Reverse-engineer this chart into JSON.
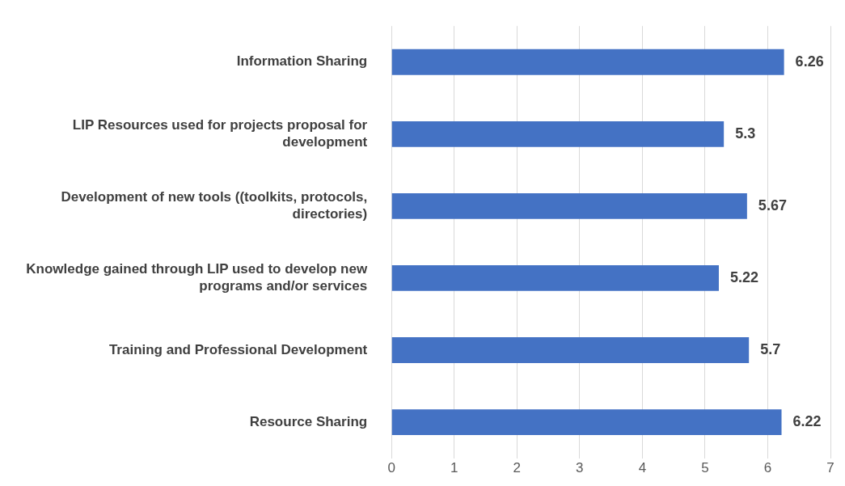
{
  "chart_data": {
    "type": "bar",
    "orientation": "horizontal",
    "categories": [
      "Information Sharing",
      "LIP Resources used for projects proposal for development",
      "Development of new tools ((toolkits, protocols, directories)",
      "Knowledge gained through LIP used to develop new programs and/or services",
      "Training and Professional Development",
      "Resource Sharing"
    ],
    "values": [
      6.26,
      5.3,
      5.67,
      5.22,
      5.7,
      6.22
    ],
    "value_labels": [
      "6.26",
      "5.3",
      "5.67",
      "5.22",
      "5.7",
      "6.22"
    ],
    "color": "#4472c4",
    "xlim": [
      0,
      7
    ],
    "xticks": [
      0,
      1,
      2,
      3,
      4,
      5,
      6,
      7
    ],
    "grid": "x",
    "legend": false
  }
}
